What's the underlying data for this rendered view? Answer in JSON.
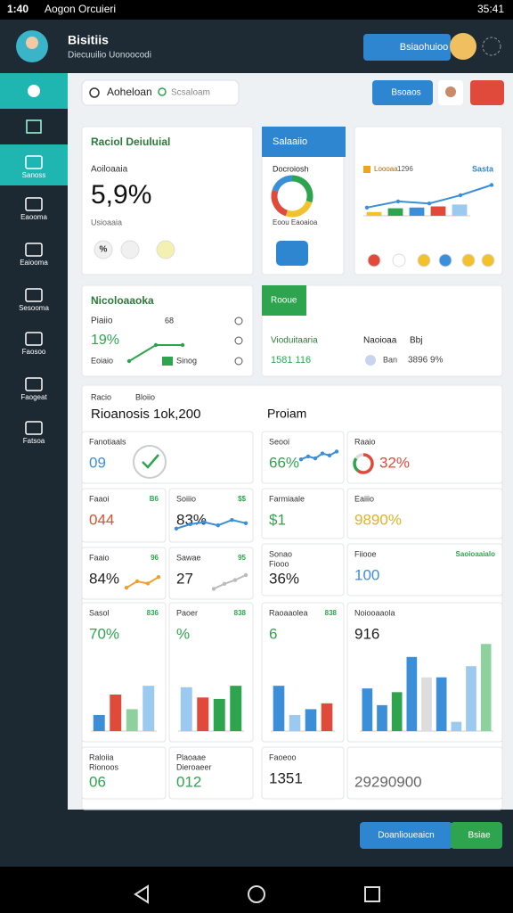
{
  "status_bar": {
    "time": "1:40",
    "carrier": "Aogon Orcuieri",
    "clock": "35:41"
  },
  "header": {
    "title": "Bisitiis",
    "subtitle": "Diecuuilio Uonoocodi",
    "button": "Bsiaohuioo"
  },
  "sidebar": {
    "items": [
      "Sanoss",
      "Eaooma",
      "Eaiooma",
      "Sesooma",
      "Faosoo",
      "Faogeat",
      "Fatsoa"
    ]
  },
  "toolbar": {
    "tab": "Aoheloan",
    "search": "Scsaloam",
    "button": "Bsoaos"
  },
  "summary": {
    "title": "Raciol Deiuluial",
    "label": "Aoiloaaia",
    "value": "5,9%",
    "caption": "Usioaaia",
    "icon": "%"
  },
  "status": {
    "tab": "Salaaiio",
    "label": "Docroiosh",
    "caption": "Eoou Eaoaioa",
    "donut": {
      "type": "pie",
      "values": [
        30,
        25,
        25,
        20
      ],
      "colors": [
        "#2ea44f",
        "#f2c12e",
        "#e04a3a",
        "#3b8fd9"
      ]
    }
  },
  "trend": {
    "legend": "Loooaa",
    "value": "1296",
    "tag": "Sasta",
    "bars": {
      "type": "bar",
      "values": [
        10,
        20,
        22,
        25,
        30
      ],
      "colors": [
        "#f2c12e",
        "#2ea44f",
        "#3b8fd9",
        "#e04a3a",
        "#9cc9ef"
      ],
      "ylim": [
        0,
        100
      ]
    },
    "line": {
      "type": "line",
      "values": [
        20,
        35,
        30,
        50,
        75
      ],
      "color": "#3b8fd9",
      "ylim": [
        0,
        100
      ]
    }
  },
  "activity": {
    "title": "Nicoloaaoka",
    "label": "Piaiio",
    "value": "19%",
    "label2": "Eoiaio",
    "legend": "Sinog",
    "tag": "68",
    "line": {
      "type": "line",
      "values": [
        10,
        70,
        70
      ],
      "color": "#2ea44f",
      "ylim": [
        0,
        100
      ]
    }
  },
  "revenue": {
    "tab": "Rooue",
    "label": "Vioduitaaria",
    "value": "1581 116",
    "label2": "Naoioaa",
    "tag": "Bbj",
    "label3": "Ban",
    "value2": "3896 9%"
  },
  "overview": {
    "tab1": "Racio",
    "tab2": "Bloiio",
    "title": "Rioanosis 1ok,200",
    "subtitle": "Proiam"
  },
  "tiles": [
    {
      "label": "Fanotiaals",
      "value": "09"
    },
    {
      "label": "Seooi",
      "value": "66%",
      "chart": {
        "type": "line",
        "values": [
          40,
          55,
          45,
          70,
          60,
          80
        ],
        "color": "#3b8fd9",
        "ylim": [
          0,
          100
        ]
      }
    },
    {
      "label": "Raaio",
      "value": "32%",
      "chart": {
        "type": "pie",
        "values": [
          60,
          25,
          15
        ],
        "colors": [
          "#e04a3a",
          "#2ea44f",
          "#dddddd"
        ]
      }
    },
    {
      "label": "Faaoi",
      "value": "044",
      "badge": "B6"
    },
    {
      "label": "Soiiio",
      "value": "83%",
      "badge": "$$",
      "chart": {
        "type": "line",
        "values": [
          30,
          50,
          60,
          45,
          70,
          55
        ],
        "color": "#3b8fd9",
        "ylim": [
          0,
          100
        ]
      }
    },
    {
      "label": "Farmiaale",
      "value": "$1"
    },
    {
      "label": "Eaiiio",
      "value": "9890%"
    },
    {
      "label": "Faaio",
      "value": "84%",
      "badge": "96",
      "chart": {
        "type": "line",
        "values": [
          20,
          50,
          40,
          70
        ],
        "color": "#f0a030",
        "ylim": [
          0,
          100
        ]
      }
    },
    {
      "label": "Sawae",
      "value": "27",
      "badge": "95",
      "chart": {
        "type": "line",
        "values": [
          20,
          40,
          55,
          75
        ],
        "color": "#bbbbbb",
        "ylim": [
          0,
          100
        ]
      }
    },
    {
      "label": "Sonao",
      "label2": "Fiooo",
      "value": "36%"
    },
    {
      "label": "Fiiooe",
      "value": "100",
      "badge": "Saoioaaialo"
    },
    {
      "label": "Sasol",
      "value": "70%",
      "badge": "836",
      "chart": {
        "type": "bar",
        "values": [
          22,
          50,
          30,
          62
        ],
        "colors": [
          "#3b8fd9",
          "#e04a3a",
          "#8fd19e",
          "#9cc9ef"
        ],
        "ylim": [
          0,
          100
        ]
      }
    },
    {
      "label": "Paoer",
      "value": "%",
      "badge": "838",
      "chart": {
        "type": "bar",
        "values": [
          60,
          46,
          44,
          62
        ],
        "colors": [
          "#9cc9ef",
          "#e04a3a",
          "#2ea44f",
          "#2ea44f"
        ],
        "ylim": [
          0,
          100
        ]
      }
    },
    {
      "label": "Raoaaolea",
      "value": "6",
      "badge": "838",
      "chart": {
        "type": "bar",
        "values": [
          62,
          22,
          30,
          38
        ],
        "colors": [
          "#3b8fd9",
          "#9cc9ef",
          "#3b8fd9",
          "#e04a3a"
        ],
        "ylim": [
          0,
          100
        ]
      }
    },
    {
      "label": "Noiooaaola",
      "value": "916",
      "chart": {
        "type": "bar",
        "values": [
          46,
          28,
          42,
          80,
          58,
          58,
          10,
          70,
          94
        ],
        "colors": [
          "#3b8fd9",
          "#3b8fd9",
          "#2ea44f",
          "#3b8fd9",
          "#dddddd",
          "#3b8fd9",
          "#9cc9ef",
          "#9cc9ef",
          "#8fd19e"
        ],
        "ylim": [
          0,
          100
        ]
      }
    },
    {
      "label": "Raloiia",
      "label2": "Rionoos",
      "value": "06"
    },
    {
      "label": "Plaoaae",
      "label2": "Dieroaeer",
      "value": "012"
    },
    {
      "label": "Faoeoo",
      "value": "1351"
    },
    {
      "value": "29290900"
    }
  ],
  "footer": {
    "primary": "Doanlioueaicn",
    "secondary": "Bsiae"
  }
}
